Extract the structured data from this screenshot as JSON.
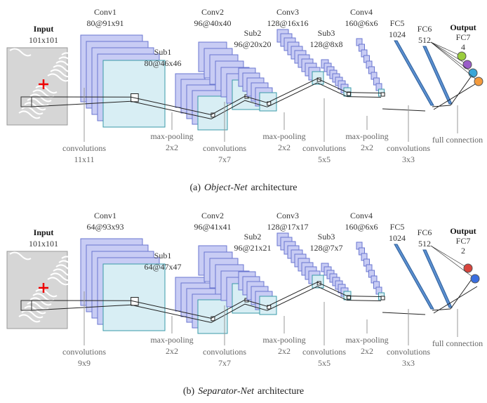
{
  "panels": [
    {
      "input": {
        "title": "Input",
        "size": "101x101"
      },
      "layers": [
        {
          "name": "Conv1",
          "size": "80@91x91"
        },
        {
          "name": "Sub1",
          "size": "80@46x46"
        },
        {
          "name": "Conv2",
          "size": "96@40x40"
        },
        {
          "name": "Sub2",
          "size": "96@20x20"
        },
        {
          "name": "Conv3",
          "size": "128@16x16"
        },
        {
          "name": "Sub3",
          "size": "128@8x8"
        },
        {
          "name": "Conv4",
          "size": "160@6x6"
        },
        {
          "name": "FC5",
          "size": "1024"
        },
        {
          "name": "FC6",
          "size": "512"
        }
      ],
      "output": {
        "title": "Output",
        "layer": "FC7",
        "units": "4"
      },
      "operations": [
        {
          "name": "convolutions",
          "kernel": "11x11"
        },
        {
          "name": "max-pooling",
          "kernel": "2x2"
        },
        {
          "name": "convolutions",
          "kernel": "7x7"
        },
        {
          "name": "max-pooling",
          "kernel": "2x2"
        },
        {
          "name": "convolutions",
          "kernel": "5x5"
        },
        {
          "name": "max-pooling",
          "kernel": "2x2"
        },
        {
          "name": "convolutions",
          "kernel": "3x3"
        },
        {
          "name": "full connection"
        }
      ],
      "caption": {
        "label": "(a)",
        "name": "Object-Net",
        "suffix": "architecture"
      }
    },
    {
      "input": {
        "title": "Input",
        "size": "101x101"
      },
      "layers": [
        {
          "name": "Conv1",
          "size": "64@93x93"
        },
        {
          "name": "Sub1",
          "size": "64@47x47"
        },
        {
          "name": "Conv2",
          "size": "96@41x41"
        },
        {
          "name": "Sub2",
          "size": "96@21x21"
        },
        {
          "name": "Conv3",
          "size": "128@17x17"
        },
        {
          "name": "Sub3",
          "size": "128@7x7"
        },
        {
          "name": "Conv4",
          "size": "160@6x6"
        },
        {
          "name": "FC5",
          "size": "1024"
        },
        {
          "name": "FC6",
          "size": "512"
        }
      ],
      "output": {
        "title": "Output",
        "layer": "FC7",
        "units": "2"
      },
      "operations": [
        {
          "name": "convolutions",
          "kernel": "9x9"
        },
        {
          "name": "max-pooling",
          "kernel": "2x2"
        },
        {
          "name": "convolutions",
          "kernel": "7x7"
        },
        {
          "name": "max-pooling",
          "kernel": "2x2"
        },
        {
          "name": "convolutions",
          "kernel": "5x5"
        },
        {
          "name": "max-pooling",
          "kernel": "2x2"
        },
        {
          "name": "convolutions",
          "kernel": "3x3"
        },
        {
          "name": "full connection"
        }
      ],
      "caption": {
        "label": "(b)",
        "name": "Separator-Net",
        "suffix": "architecture"
      }
    }
  ]
}
